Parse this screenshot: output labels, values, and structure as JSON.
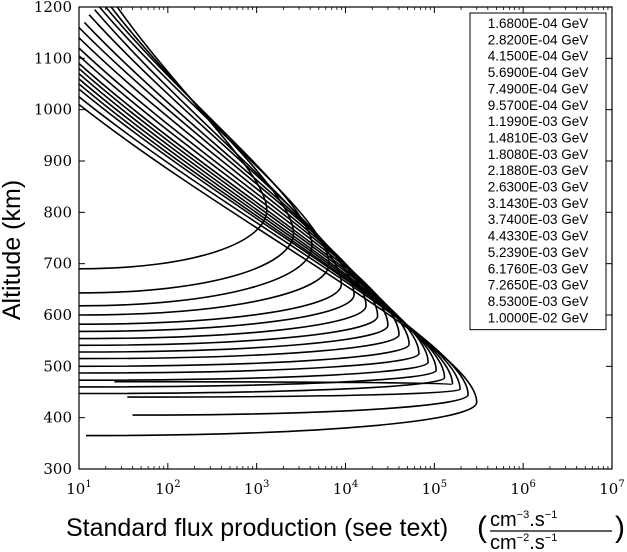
{
  "chart_data": {
    "type": "line",
    "xlabel": "Standard flux production (see text)",
    "xlabel_units": {
      "numerator": "cm",
      "numerator_exp": "−3",
      "numerator_rest": ".s",
      "numerator_rest_exp": "−1",
      "denominator": "cm",
      "denominator_exp": "−2",
      "denominator_rest": ".s",
      "denominator_rest_exp": "−1"
    },
    "ylabel": "Altitude (km)",
    "xscale": "log",
    "xlim": [
      10,
      10000000
    ],
    "ylim": [
      300,
      1200
    ],
    "x_ticks": [
      {
        "base": "10",
        "exp": "1",
        "value": 10
      },
      {
        "base": "10",
        "exp": "2",
        "value": 100
      },
      {
        "base": "10",
        "exp": "3",
        "value": 1000
      },
      {
        "base": "10",
        "exp": "4",
        "value": 10000
      },
      {
        "base": "10",
        "exp": "5",
        "value": 100000
      },
      {
        "base": "10",
        "exp": "6",
        "value": 1000000
      },
      {
        "base": "10",
        "exp": "7",
        "value": 10000000
      }
    ],
    "y_ticks": [
      "300",
      "400",
      "500",
      "600",
      "700",
      "800",
      "900",
      "1000",
      "1100",
      "1200"
    ],
    "legend_position": "top-right",
    "grid": false,
    "line_color": "#000000",
    "series": [
      {
        "name": "1.6800E-04 GeV",
        "peak_x": 1300,
        "peak_y": 805,
        "low_end": [
          10,
          690
        ],
        "high_end": [
          27,
          1200
        ]
      },
      {
        "name": "2.8200E-04 GeV",
        "peak_x": 2600,
        "peak_y": 760,
        "low_end": [
          10,
          643
        ],
        "high_end": [
          23,
          1200
        ]
      },
      {
        "name": "4.1500E-04 GeV",
        "peak_x": 4200,
        "peak_y": 735,
        "low_end": [
          10,
          618
        ],
        "high_end": [
          20,
          1200
        ]
      },
      {
        "name": "5.6900E-04 GeV",
        "peak_x": 6500,
        "peak_y": 700,
        "low_end": [
          10,
          600
        ],
        "high_end": [
          17,
          1200
        ]
      },
      {
        "name": "7.4900E-04 GeV",
        "peak_x": 9000,
        "peak_y": 660,
        "low_end": [
          10,
          582
        ],
        "high_end": [
          15,
          1195
        ]
      },
      {
        "name": "9.5700E-04 GeV",
        "peak_x": 12500,
        "peak_y": 640,
        "low_end": [
          10,
          568
        ],
        "high_end": [
          13,
          1185
        ]
      },
      {
        "name": "1.1990E-03 GeV",
        "peak_x": 17000,
        "peak_y": 618,
        "low_end": [
          10,
          554
        ],
        "high_end": [
          11.5,
          1170
        ]
      },
      {
        "name": "1.4810E-03 GeV",
        "peak_x": 23000,
        "peak_y": 598,
        "low_end": [
          10,
          541
        ],
        "high_end": [
          10,
          1160
        ]
      },
      {
        "name": "1.8080E-03 GeV",
        "peak_x": 30000,
        "peak_y": 580,
        "low_end": [
          10,
          528
        ],
        "high_end": [
          10,
          1140
        ]
      },
      {
        "name": "2.1880E-03 GeV",
        "peak_x": 40000,
        "peak_y": 562,
        "low_end": [
          10,
          515
        ],
        "high_end": [
          10,
          1120
        ]
      },
      {
        "name": "2.6300E-03 GeV",
        "peak_x": 52000,
        "peak_y": 543,
        "low_end": [
          10,
          500
        ],
        "high_end": [
          10,
          1105
        ]
      },
      {
        "name": "3.1430E-03 GeV",
        "peak_x": 67000,
        "peak_y": 525,
        "low_end": [
          10,
          487
        ],
        "high_end": [
          10,
          1090
        ]
      },
      {
        "name": "3.7400E-03 GeV",
        "peak_x": 85000,
        "peak_y": 508,
        "low_end": [
          10,
          473
        ],
        "high_end": [
          10,
          1080
        ]
      },
      {
        "name": "4.4330E-03 GeV",
        "peak_x": 105000,
        "peak_y": 492,
        "low_end": [
          10,
          460
        ],
        "high_end": [
          10,
          1070
        ]
      },
      {
        "name": "5.2390E-03 GeV",
        "peak_x": 130000,
        "peak_y": 478,
        "low_end": [
          10,
          447
        ],
        "high_end": [
          10,
          1060
        ]
      },
      {
        "name": "6.1760E-03 GeV",
        "peak_x": 160000,
        "peak_y": 465,
        "low_end": [
          25,
          470
        ],
        "high_end": [
          10,
          1050
        ]
      },
      {
        "name": "7.2650E-03 GeV",
        "peak_x": 195000,
        "peak_y": 455,
        "low_end": [
          35,
          440
        ],
        "high_end": [
          10,
          1040
        ]
      },
      {
        "name": "8.5300E-03 GeV",
        "peak_x": 240000,
        "peak_y": 445,
        "low_end": [
          40,
          405
        ],
        "high_end": [
          10,
          1025
        ]
      },
      {
        "name": "1.0000E-02 GeV",
        "peak_x": 300000,
        "peak_y": 430,
        "low_end": [
          12,
          365
        ],
        "high_end": [
          10,
          1010
        ]
      }
    ]
  }
}
